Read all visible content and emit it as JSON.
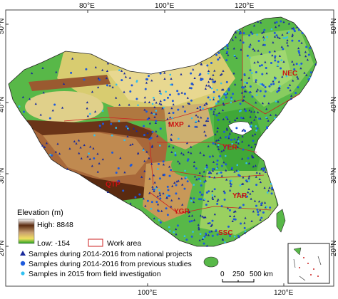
{
  "map": {
    "graticule_labels": {
      "top": [
        "80°E",
        "100°E",
        "120°E"
      ],
      "bottom": [
        "100°E",
        "120°E"
      ],
      "left": [
        "50°N",
        "40°N",
        "30°N",
        "20°N"
      ],
      "right": [
        "50°N",
        "40°N",
        "30°N",
        "20°N"
      ]
    },
    "regions": [
      "NEC",
      "MXP",
      "YER",
      "QTP",
      "YAR",
      "YGR",
      "SSC"
    ],
    "colors": {
      "elevation_high": "#5a2a10",
      "elevation_mid": "#c8a070",
      "elevation_low": "#20a020",
      "water": "#ffffff",
      "work_area_border": "#cc2222",
      "region_label": "#cc1111",
      "sample_national": "#1a2a9a",
      "sample_previous": "#1e5adc",
      "sample_field": "#30c0f0"
    }
  },
  "legend": {
    "elevation_title": "Elevation (m)",
    "high_label": "High: 8848",
    "low_label": "Low: -154",
    "work_area_label": "Work area",
    "national_label": "Samples during 2014-2016 from national projects",
    "previous_label": "Samples during 2014-2016 from previous studies",
    "field_label": "Samples in 2015 from field investigation"
  },
  "scale_bar": {
    "labels": [
      "0",
      "250",
      "500 km"
    ]
  }
}
